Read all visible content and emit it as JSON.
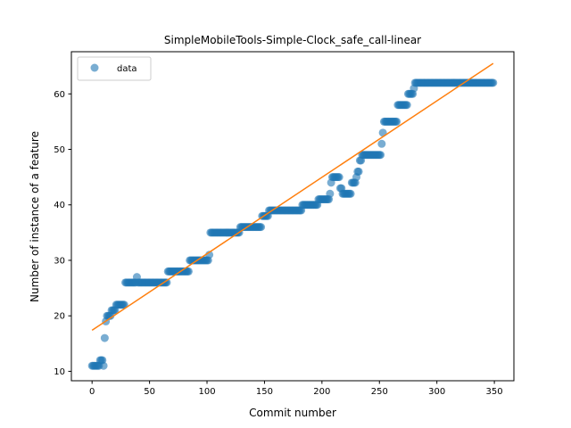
{
  "chart_data": {
    "type": "scatter",
    "title": "SimpleMobileTools-Simple-Clock_safe_call-linear",
    "xlabel": "Commit number",
    "ylabel": "Number of instance of a feature",
    "xlim": [
      -18,
      367
    ],
    "ylim": [
      8.3,
      67.6
    ],
    "xticks": [
      0,
      50,
      100,
      150,
      200,
      250,
      300,
      350
    ],
    "yticks": [
      10,
      20,
      30,
      40,
      50,
      60
    ],
    "grid": false,
    "legend": {
      "placement": "top-left",
      "entries": [
        "data"
      ]
    },
    "colors": {
      "data": "#1f77b4",
      "fit": "#ff7f0e"
    },
    "series": [
      {
        "name": "data",
        "type": "scatter",
        "segments": [
          {
            "from": 0,
            "to": 6,
            "y": 11
          },
          {
            "from": 7,
            "to": 9,
            "y": 12
          },
          {
            "from": 10,
            "to": 10,
            "y": 11
          },
          {
            "from": 11,
            "to": 11,
            "y": 16
          },
          {
            "from": 12,
            "to": 12,
            "y": 19
          },
          {
            "from": 13,
            "to": 16,
            "y": 20
          },
          {
            "from": 17,
            "to": 20,
            "y": 21
          },
          {
            "from": 21,
            "to": 28,
            "y": 22
          },
          {
            "from": 29,
            "to": 38,
            "y": 26
          },
          {
            "from": 39,
            "to": 39,
            "y": 27
          },
          {
            "from": 40,
            "to": 65,
            "y": 26
          },
          {
            "from": 66,
            "to": 84,
            "y": 28
          },
          {
            "from": 85,
            "to": 101,
            "y": 30
          },
          {
            "from": 102,
            "to": 102,
            "y": 31
          },
          {
            "from": 103,
            "to": 128,
            "y": 35
          },
          {
            "from": 129,
            "to": 147,
            "y": 36
          },
          {
            "from": 148,
            "to": 153,
            "y": 38
          },
          {
            "from": 154,
            "to": 182,
            "y": 39
          },
          {
            "from": 183,
            "to": 196,
            "y": 40
          },
          {
            "from": 197,
            "to": 206,
            "y": 41
          },
          {
            "from": 207,
            "to": 207,
            "y": 42
          },
          {
            "from": 208,
            "to": 208,
            "y": 44
          },
          {
            "from": 209,
            "to": 215,
            "y": 45
          },
          {
            "from": 216,
            "to": 217,
            "y": 43
          },
          {
            "from": 218,
            "to": 225,
            "y": 42
          },
          {
            "from": 226,
            "to": 229,
            "y": 44
          },
          {
            "from": 230,
            "to": 230,
            "y": 45
          },
          {
            "from": 231,
            "to": 232,
            "y": 46
          },
          {
            "from": 233,
            "to": 234,
            "y": 48
          },
          {
            "from": 235,
            "to": 251,
            "y": 49
          },
          {
            "from": 252,
            "to": 252,
            "y": 51
          },
          {
            "from": 253,
            "to": 253,
            "y": 53
          },
          {
            "from": 254,
            "to": 265,
            "y": 55
          },
          {
            "from": 266,
            "to": 274,
            "y": 58
          },
          {
            "from": 275,
            "to": 279,
            "y": 60
          },
          {
            "from": 280,
            "to": 280,
            "y": 61
          },
          {
            "from": 281,
            "to": 349,
            "y": 62
          }
        ]
      },
      {
        "name": "",
        "type": "line",
        "points": [
          [
            0,
            17.4
          ],
          [
            349,
            65.5
          ]
        ]
      }
    ]
  }
}
